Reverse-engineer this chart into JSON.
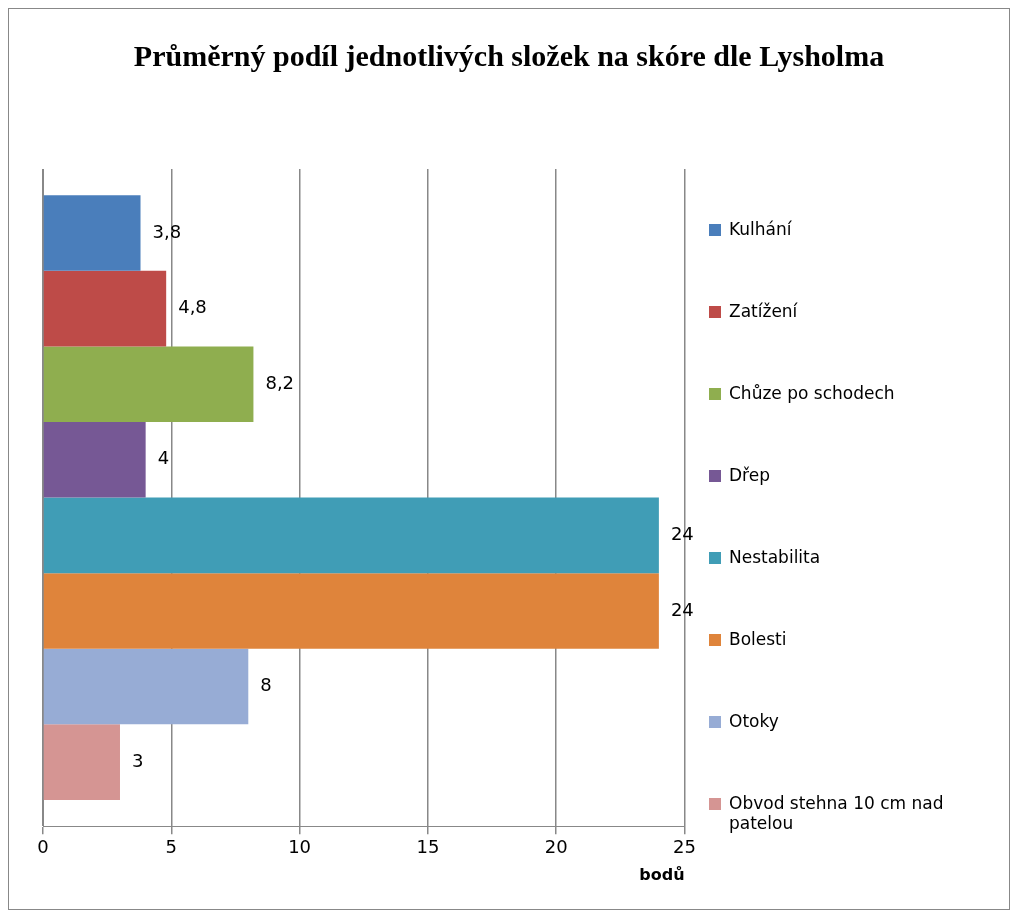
{
  "chart_data": {
    "type": "bar",
    "orientation": "horizontal",
    "title": "Průměrný podíl jednotlivých složek na skóre dle Lysholma",
    "xlabel": "bodů",
    "categories": [
      null
    ],
    "xlim": [
      0,
      25
    ],
    "xticks": [
      0,
      5,
      10,
      15,
      20,
      25
    ],
    "grid": "x",
    "legend": "right",
    "series": [
      {
        "name": "Kulhání",
        "color": "#4a7ebb",
        "values": [
          3.8
        ],
        "value_labels": [
          "3,8"
        ]
      },
      {
        "name": "Zatížení",
        "color": "#be4b48",
        "values": [
          4.8
        ],
        "value_labels": [
          "4,8"
        ]
      },
      {
        "name": "Chůze po schodech",
        "color": "#8fae4f",
        "values": [
          8.2
        ],
        "value_labels": [
          "8,2"
        ]
      },
      {
        "name": "Dřep",
        "color": "#765895",
        "values": [
          4
        ],
        "value_labels": [
          "4"
        ]
      },
      {
        "name": "Nestabilita",
        "color": "#409db6",
        "values": [
          24
        ],
        "value_labels": [
          "24"
        ]
      },
      {
        "name": "Bolesti",
        "color": "#df843b",
        "values": [
          24
        ],
        "value_labels": [
          "24"
        ]
      },
      {
        "name": "Otoky",
        "color": "#97acd5",
        "values": [
          8
        ],
        "value_labels": [
          "8"
        ]
      },
      {
        "name": "Obvod stehna 10 cm nad patelou",
        "color": "#d59593",
        "values": [
          3
        ],
        "value_labels": [
          "3"
        ]
      }
    ]
  }
}
